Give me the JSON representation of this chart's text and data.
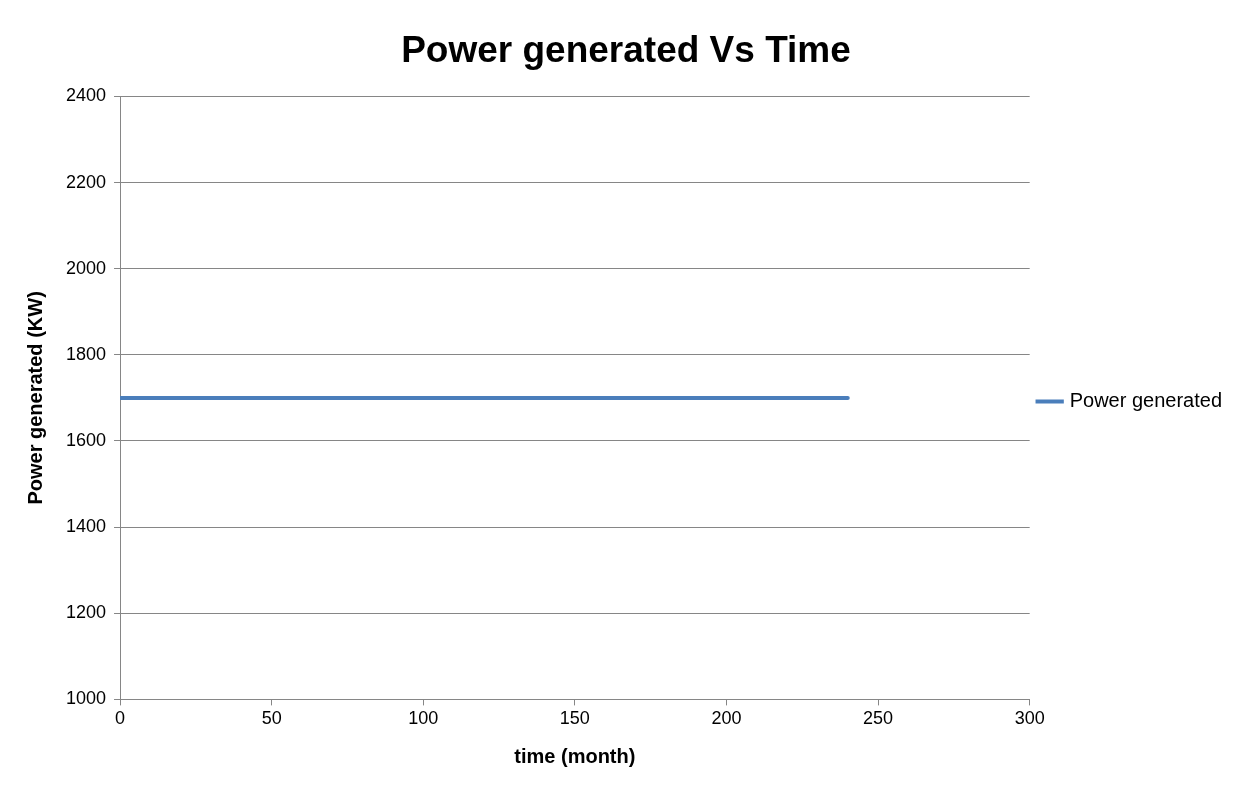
{
  "chart_data": {
    "type": "line",
    "title": "Power generated Vs Time",
    "xlabel": "time (month)",
    "ylabel": "Power generated (KW)",
    "x": [
      0,
      240
    ],
    "series": [
      {
        "name": "Power generated",
        "color": "#4a7ebb",
        "values": [
          1700,
          1700
        ]
      }
    ],
    "xlim": [
      0,
      300
    ],
    "xticks": [
      0,
      50,
      100,
      150,
      200,
      250,
      300
    ],
    "ylim": [
      1000,
      2400
    ],
    "yticks": [
      1000,
      1200,
      1400,
      1600,
      1800,
      2000,
      2200,
      2400
    ],
    "grid": "y",
    "legend": "right",
    "marker": "none",
    "line_style": "solid"
  }
}
